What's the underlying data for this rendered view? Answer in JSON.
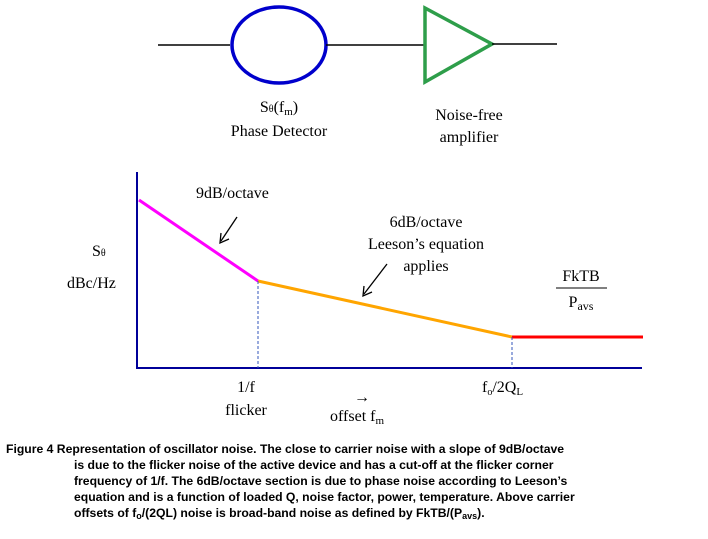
{
  "diagram": {
    "phase_detector": {
      "symbol_base": "S",
      "symbol_sub": "θ",
      "symbol_arg_open": "(f",
      "symbol_arg_sub": "m",
      "symbol_arg_close": ")",
      "name": "Phase Detector"
    },
    "amplifier": {
      "line1": "Noise-free",
      "line2": "amplifier"
    },
    "y_axis": {
      "symbol_base": "S",
      "symbol_sub": "θ",
      "unit": "dBc/Hz"
    },
    "labels": {
      "slope_9db": "9dB/octave",
      "slope_6db": "6dB/octave",
      "leeson_line1": "Leeson’s equation",
      "leeson_line2": "applies",
      "fktb": "FkTB",
      "pavs_base": "P",
      "pavs_sub": "avs",
      "flicker_freq": "1/f",
      "flicker_word": "flicker",
      "offset_arrow": "→",
      "offset_base": "offset f",
      "offset_sub": "m",
      "corner_f": "f",
      "corner_f_sub": "o",
      "corner_rest": "/2Q",
      "corner_q_sub": "L"
    },
    "colors": {
      "detector_circle": "#0000cc",
      "amplifier_triangle": "#2e9e4a",
      "flicker_segment": "#ff00ff",
      "leeson_segment": "#ffa500",
      "broadband_segment": "#ff0000",
      "axes": "#000099"
    }
  },
  "caption": {
    "line1": "Figure 4 Representation of oscillator noise. The close to carrier noise with a slope of 9dB/octave",
    "line2": "is due to the flicker noise of the active device and has a cut-off at the flicker corner",
    "line3": "frequency of 1/f.  The 6dB/octave section is due to phase noise according to Leeson’s",
    "line4": "equation and is a function of loaded Q, noise factor, power, temperature. Above carrier",
    "line5_pre": "offsets of f",
    "line5_sub1": "o",
    "line5_mid": "/(2QL) noise is broad-band noise as defined by FkTB/(P",
    "line5_sub2": "avs",
    "line5_end": ")."
  }
}
